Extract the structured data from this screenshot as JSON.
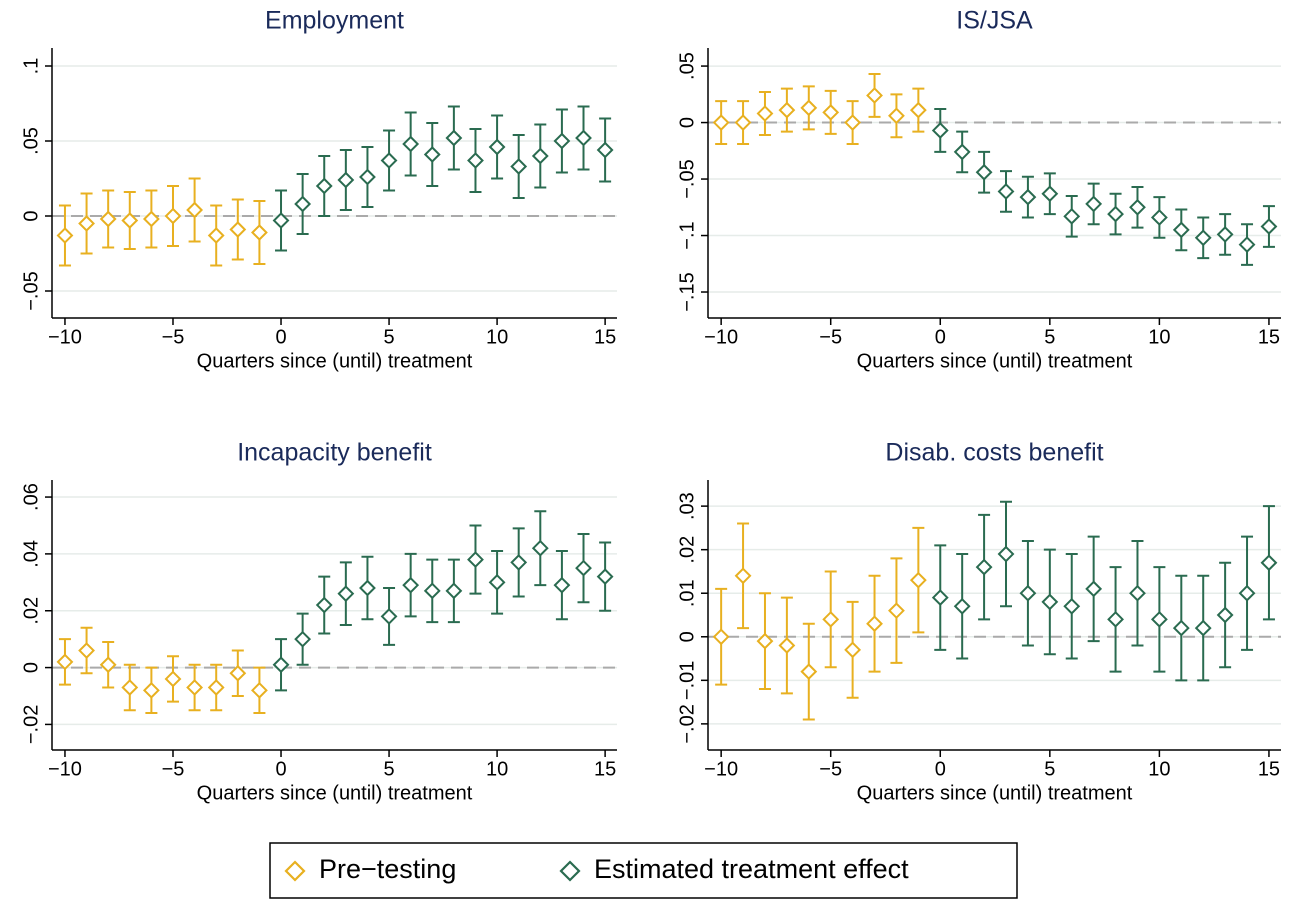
{
  "legend": [
    {
      "name": "Pre−testing",
      "color": "#e8b020"
    },
    {
      "name": "Estimated treatment effect",
      "color": "#2a6b50"
    }
  ],
  "chart_data": [
    {
      "type": "errorbar",
      "title": "Employment",
      "x_label": "Quarters since (until) treatment",
      "xlim": [
        -10.6,
        15.55
      ],
      "xticks": [
        {
          "value": -10,
          "label": "−10"
        },
        {
          "value": -5,
          "label": "−5"
        },
        0,
        5,
        10,
        15
      ],
      "ylim": [
        -0.068,
        0.112
      ],
      "yticks": [
        {
          "value": -0.05,
          "label": "−.05"
        },
        0,
        {
          "value": 0.05,
          "label": ".05"
        },
        {
          "value": 0.1,
          "label": ".1"
        }
      ],
      "grid": true,
      "series": [
        {
          "x": [
            -10,
            -9,
            -8,
            -7,
            -6,
            -5,
            -4,
            -3,
            -2,
            -1
          ],
          "values": [
            -0.013,
            -0.005,
            -0.002,
            -0.003,
            -0.002,
            0,
            0.004,
            -0.013,
            -0.009,
            -0.011
          ],
          "errors": [
            0.02,
            0.02,
            0.019,
            0.019,
            0.019,
            0.02,
            0.021,
            0.02,
            0.02,
            0.021
          ]
        },
        {
          "x": [
            0,
            1,
            2,
            3,
            4,
            5,
            6,
            7,
            8,
            9,
            10,
            11,
            12,
            13,
            14,
            15
          ],
          "values": [
            -0.003,
            0.008,
            0.02,
            0.024,
            0.026,
            0.037,
            0.048,
            0.041,
            0.052,
            0.037,
            0.046,
            0.033,
            0.04,
            0.05,
            0.052,
            0.044
          ],
          "errors": [
            0.02,
            0.02,
            0.02,
            0.02,
            0.02,
            0.02,
            0.021,
            0.021,
            0.021,
            0.021,
            0.021,
            0.021,
            0.021,
            0.021,
            0.021,
            0.021
          ]
        }
      ]
    },
    {
      "type": "errorbar",
      "title": "IS/JSA",
      "x_label": "Quarters since (until) treatment",
      "xlim": [
        -10.6,
        15.55
      ],
      "xticks": [
        {
          "value": -10,
          "label": "−10"
        },
        {
          "value": -5,
          "label": "−5"
        },
        0,
        5,
        10,
        15
      ],
      "ylim": [
        -0.173,
        0.066
      ],
      "yticks": [
        {
          "value": -0.15,
          "label": "−.15"
        },
        {
          "value": -0.1,
          "label": "−.1"
        },
        {
          "value": -0.05,
          "label": "−.05"
        },
        0,
        {
          "value": 0.05,
          "label": ".05"
        }
      ],
      "grid": true,
      "series": [
        {
          "x": [
            -10,
            -9,
            -8,
            -7,
            -6,
            -5,
            -4,
            -3,
            -2,
            -1
          ],
          "values": [
            0,
            0,
            0.008,
            0.011,
            0.013,
            0.009,
            0,
            0.024,
            0.006,
            0.011
          ],
          "errors": [
            0.019,
            0.019,
            0.019,
            0.019,
            0.019,
            0.019,
            0.019,
            0.019,
            0.019,
            0.019
          ]
        },
        {
          "x": [
            0,
            1,
            2,
            3,
            4,
            5,
            6,
            7,
            8,
            9,
            10,
            11,
            12,
            13,
            14,
            15
          ],
          "values": [
            -0.007,
            -0.026,
            -0.044,
            -0.061,
            -0.066,
            -0.063,
            -0.083,
            -0.072,
            -0.081,
            -0.075,
            -0.084,
            -0.095,
            -0.102,
            -0.099,
            -0.108,
            -0.092
          ],
          "errors": [
            0.019,
            0.018,
            0.018,
            0.018,
            0.018,
            0.018,
            0.018,
            0.018,
            0.018,
            0.018,
            0.018,
            0.018,
            0.018,
            0.018,
            0.018,
            0.018
          ]
        }
      ]
    },
    {
      "type": "errorbar",
      "title": "Incapacity benefit",
      "x_label": "Quarters since (until) treatment",
      "xlim": [
        -10.6,
        15.55
      ],
      "xticks": [
        {
          "value": -10,
          "label": "−10"
        },
        {
          "value": -5,
          "label": "−5"
        },
        0,
        5,
        10,
        15
      ],
      "ylim": [
        -0.029,
        0.066
      ],
      "yticks": [
        {
          "value": -0.02,
          "label": "−.02"
        },
        0,
        {
          "value": 0.02,
          "label": ".02"
        },
        {
          "value": 0.04,
          "label": ".04"
        },
        {
          "value": 0.06,
          "label": ".06"
        }
      ],
      "grid": true,
      "series": [
        {
          "x": [
            -10,
            -9,
            -8,
            -7,
            -6,
            -5,
            -4,
            -3,
            -2,
            -1
          ],
          "values": [
            0.002,
            0.006,
            0.001,
            -0.007,
            -0.008,
            -0.004,
            -0.007,
            -0.007,
            -0.002,
            -0.008
          ],
          "errors": [
            0.008,
            0.008,
            0.008,
            0.008,
            0.008,
            0.008,
            0.008,
            0.008,
            0.008,
            0.008
          ]
        },
        {
          "x": [
            0,
            1,
            2,
            3,
            4,
            5,
            6,
            7,
            8,
            9,
            10,
            11,
            12,
            13,
            14,
            15
          ],
          "values": [
            0.001,
            0.01,
            0.022,
            0.026,
            0.028,
            0.018,
            0.029,
            0.027,
            0.027,
            0.038,
            0.03,
            0.037,
            0.042,
            0.029,
            0.035,
            0.032
          ],
          "errors": [
            0.009,
            0.009,
            0.01,
            0.011,
            0.011,
            0.01,
            0.011,
            0.011,
            0.011,
            0.012,
            0.011,
            0.012,
            0.013,
            0.012,
            0.012,
            0.012
          ]
        }
      ]
    },
    {
      "type": "errorbar",
      "title": "Disab. costs benefit",
      "x_label": "Quarters since (until) treatment",
      "xlim": [
        -10.6,
        15.55
      ],
      "xticks": [
        {
          "value": -10,
          "label": "−10"
        },
        {
          "value": -5,
          "label": "−5"
        },
        0,
        5,
        10,
        15
      ],
      "ylim": [
        -0.026,
        0.036
      ],
      "yticks": [
        {
          "value": -0.02,
          "label": "−.02"
        },
        {
          "value": -0.01,
          "label": "−.01"
        },
        0,
        {
          "value": 0.01,
          "label": ".01"
        },
        {
          "value": 0.02,
          "label": ".02"
        },
        {
          "value": 0.03,
          "label": ".03"
        }
      ],
      "grid": true,
      "series": [
        {
          "x": [
            -10,
            -9,
            -8,
            -7,
            -6,
            -5,
            -4,
            -3,
            -2,
            -1
          ],
          "values": [
            0,
            0.014,
            -0.001,
            -0.002,
            -0.008,
            0.004,
            -0.003,
            0.003,
            0.006,
            0.013
          ],
          "errors": [
            0.011,
            0.012,
            0.011,
            0.011,
            0.011,
            0.011,
            0.011,
            0.011,
            0.012,
            0.012
          ]
        },
        {
          "x": [
            0,
            1,
            2,
            3,
            4,
            5,
            6,
            7,
            8,
            9,
            10,
            11,
            12,
            13,
            14,
            15
          ],
          "values": [
            0.009,
            0.007,
            0.016,
            0.019,
            0.01,
            0.008,
            0.007,
            0.011,
            0.004,
            0.01,
            0.004,
            0.002,
            0.002,
            0.005,
            0.01,
            0.017
          ],
          "errors": [
            0.012,
            0.012,
            0.012,
            0.012,
            0.012,
            0.012,
            0.012,
            0.012,
            0.012,
            0.012,
            0.012,
            0.012,
            0.012,
            0.012,
            0.013,
            0.013
          ]
        }
      ]
    }
  ]
}
